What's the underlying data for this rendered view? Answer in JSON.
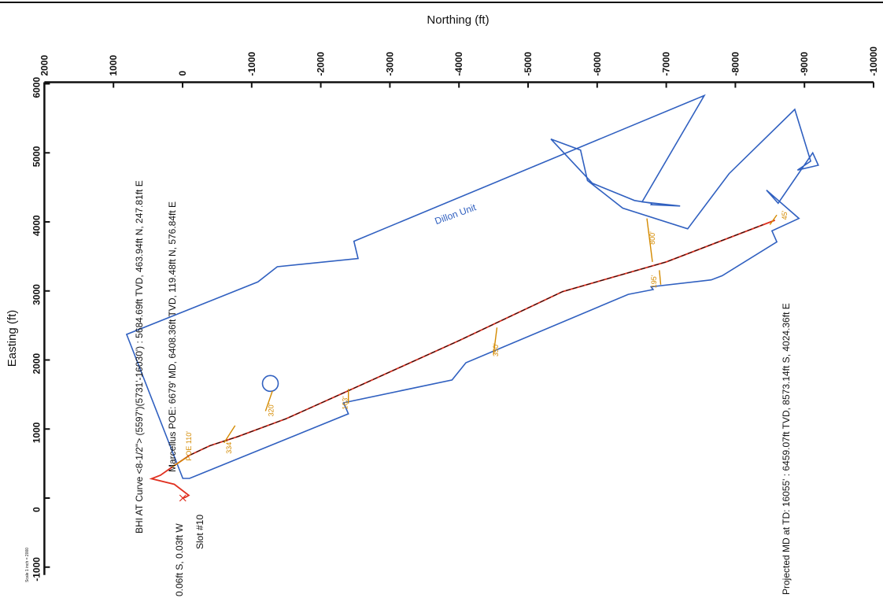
{
  "chart_data": {
    "type": "line",
    "xlabel": "Northing (ft)",
    "ylabel": "Easting (ft)",
    "x_ticks": [
      "2000",
      "1000",
      "0",
      "-1000",
      "-2000",
      "-3000",
      "-4000",
      "-5000",
      "-6000",
      "-7000",
      "-8000",
      "-9000",
      "-10000"
    ],
    "y_ticks": [
      "6000",
      "5000",
      "4000",
      "3000",
      "2000",
      "1000",
      "0",
      "-1000"
    ],
    "xlim": [
      2000,
      -10000
    ],
    "ylim": [
      -1000,
      6000
    ],
    "scale_note": "Scale 1 inch = 2000",
    "unit_label": "Dillon Unit",
    "colors": {
      "boundary": "#3060c0",
      "wellpath": "#e03020",
      "survey": "#111111",
      "annotation": "#d48a00"
    },
    "series": [
      {
        "name": "Dillon Unit",
        "x": [
          -3,
          810,
          -1090,
          -1370,
          -2540,
          -2480,
          -7550,
          -6650,
          -7200,
          -6780,
          -6790,
          -6600,
          -6540,
          -5930,
          -5330,
          -5760,
          -5860,
          -6370,
          -7310,
          -7910,
          -8860,
          -9090,
          -8900,
          -9200,
          -9120,
          -8620,
          -8450,
          -8920,
          -8530,
          -8600,
          -7810,
          -7650,
          -6780,
          -6810,
          -6450,
          -4100,
          -3900,
          -2330,
          -2400,
          -100
        ],
        "y": [
          285,
          2370,
          3130,
          3350,
          3470,
          3720,
          5830,
          4290,
          4230,
          4250,
          4270,
          4300,
          4310,
          4560,
          5200,
          5040,
          4600,
          4200,
          3900,
          4700,
          5630,
          4880,
          4750,
          4820,
          5000,
          4270,
          4460,
          4050,
          3870,
          3710,
          3220,
          3160,
          3060,
          3020,
          2950,
          1960,
          1710,
          1380,
          1220,
          285
        ]
      },
      {
        "name": "Wellpath",
        "x": [
          -3,
          -40,
          -90,
          120,
          450,
          320,
          150,
          -100,
          -400,
          -800,
          -1500,
          -2500,
          -4000,
          -5500,
          -7000,
          -8573
        ],
        "y": [
          0,
          10,
          40,
          200,
          280,
          330,
          450,
          620,
          760,
          890,
          1150,
          1600,
          2280,
          2990,
          3420,
          4024
        ]
      },
      {
        "name": "Survey",
        "x": [
          150,
          -100,
          -400,
          -800,
          -1500,
          -2500,
          -4000,
          -5500,
          -7000,
          -8400
        ],
        "y": [
          450,
          620,
          760,
          890,
          1150,
          1600,
          2280,
          2990,
          3420,
          3960
        ]
      }
    ],
    "markers": [
      {
        "name": "circle",
        "x": -1270,
        "y": 1660
      }
    ],
    "annotations": [
      "BHI AT Curve <8-1/2\"> (5597')(5731'-16030') : 5684.69ft TVD, 463.94ft N, 247.81ft E",
      "Marcellus POE: 6679' MD, 6408.36ft TVD, 119.48ft N, 576.84ft E",
      "0.06ft S, 0.03ft W",
      "Slot #10",
      "Projected MD at TD: 16055' : 6459.07ft TVD, 8573.14ft S, 4024.36ft E"
    ],
    "offset_labels": [
      {
        "text": "POE 110'",
        "x": -80,
        "y": 700
      },
      {
        "text": "334'",
        "x": -660,
        "y": 800
      },
      {
        "text": "320'",
        "x": -1270,
        "y": 1340
      },
      {
        "text": "163'",
        "x": -2340,
        "y": 1440
      },
      {
        "text": "350'",
        "x": -4520,
        "y": 2210
      },
      {
        "text": "195'",
        "x": -6810,
        "y": 3200
      },
      {
        "text": "800'",
        "x": -6790,
        "y": 3830
      },
      {
        "text": "45'",
        "x": -8700,
        "y": 4190
      }
    ]
  }
}
